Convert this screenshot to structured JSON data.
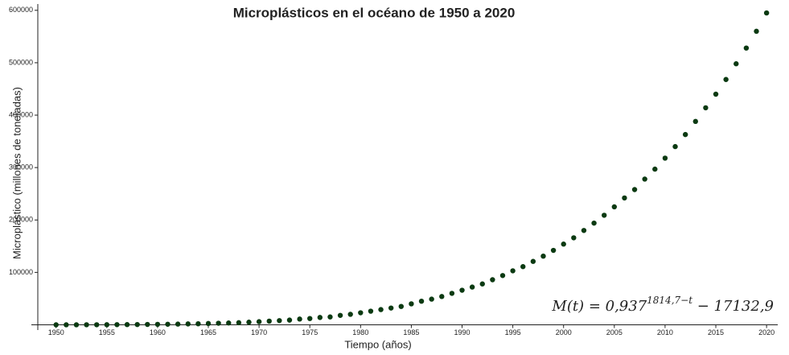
{
  "chart_data": {
    "type": "scatter",
    "title": "Microplásticos en el océano de 1950 a 2020",
    "x_label": "Tiempo (años)",
    "y_label": "Microplástico (millones de toneladas)",
    "annotation": {
      "base": "M(t) = 0,937",
      "exponent": "1814,7−t",
      "rest": " − 17132,9"
    },
    "color": "#0b3a12",
    "x": [
      1950,
      1951,
      1952,
      1953,
      1954,
      1955,
      1956,
      1957,
      1958,
      1959,
      1960,
      1961,
      1962,
      1963,
      1964,
      1965,
      1966,
      1967,
      1968,
      1969,
      1970,
      1971,
      1972,
      1973,
      1974,
      1975,
      1976,
      1977,
      1978,
      1979,
      1980,
      1981,
      1982,
      1983,
      1984,
      1985,
      1986,
      1987,
      1988,
      1989,
      1990,
      1991,
      1992,
      1993,
      1994,
      1995,
      1996,
      1997,
      1998,
      1999,
      2000,
      2001,
      2002,
      2003,
      2004,
      2005,
      2006,
      2007,
      2008,
      2009,
      2010,
      2011,
      2012,
      2013,
      2014,
      2015,
      2016,
      2017,
      2018,
      2019,
      2020
    ],
    "values": [
      0,
      20,
      50,
      100,
      150,
      200,
      300,
      400,
      500,
      700,
      900,
      1100,
      1400,
      1700,
      2000,
      2500,
      3000,
      3500,
      4000,
      5000,
      6000,
      7000,
      8000,
      9000,
      11000,
      12000,
      14000,
      15000,
      18000,
      20000,
      23000,
      26000,
      29000,
      32000,
      35000,
      40000,
      45000,
      49000,
      54000,
      60000,
      66000,
      72000,
      78000,
      86000,
      94000,
      103000,
      111000,
      121000,
      131000,
      142000,
      154000,
      166000,
      180000,
      194000,
      209000,
      225000,
      242000,
      258000,
      278000,
      297000,
      318000,
      340000,
      363000,
      388000,
      414000,
      440000,
      468000,
      498000,
      528000,
      560000,
      595000
    ],
    "xlim": [
      1948.2,
      2021.1
    ],
    "ylim": [
      -10000,
      612000
    ],
    "xticks": [
      1950,
      1955,
      1960,
      1965,
      1970,
      1975,
      1980,
      1985,
      1990,
      1995,
      2000,
      2005,
      2010,
      2015,
      2020
    ],
    "yticks": [
      100000,
      200000,
      300000,
      400000,
      500000,
      600000
    ],
    "grid": false
  }
}
